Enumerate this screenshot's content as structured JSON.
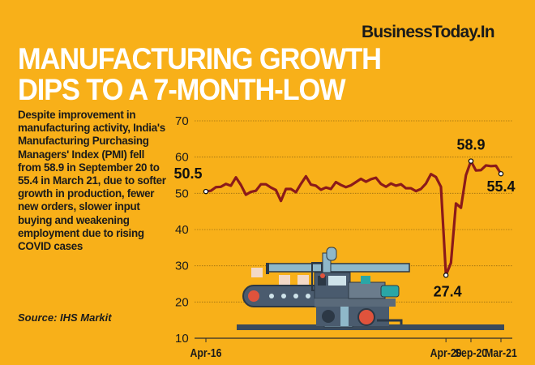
{
  "brand": "BusinessToday.In",
  "title_lines": [
    "MANUFACTURING GROWTH",
    "DIPS TO A 7-MONTH-LOW"
  ],
  "description": "Despite improvement in manufacturing activity, India's Manufacturing Purchasing Managers' Index (PMI) fell from 58.9 in September 20 to 55.4 in March 21, due to softer growth in production, fewer new orders, slower input buying and weakening employment due to rising COVID cases",
  "source": "Source: IHS Markit",
  "colors": {
    "background": "#F8B019",
    "line": "#8B1A1A",
    "title": "#FFFFFF"
  },
  "chart_data": {
    "type": "line",
    "title": "",
    "xlabel": "",
    "ylabel": "",
    "ylim": [
      10,
      70
    ],
    "yticks": [
      10,
      20,
      30,
      40,
      50,
      60,
      70
    ],
    "grid": "horizontal dotted",
    "x_start": "Apr-16",
    "x_end": "Mar-21",
    "xticks": [
      {
        "index": 0,
        "label": "Apr-16"
      },
      {
        "index": 48,
        "label": "Apr-20"
      },
      {
        "index": 53,
        "label": "Sep-20"
      },
      {
        "index": 59,
        "label": "Mar-21"
      }
    ],
    "values": [
      50.5,
      50.7,
      51.7,
      51.8,
      52.6,
      52.1,
      54.4,
      52.3,
      49.6,
      50.4,
      50.7,
      52.5,
      52.5,
      51.6,
      50.9,
      47.9,
      51.2,
      51.2,
      50.3,
      52.6,
      54.7,
      52.4,
      52.1,
      51.0,
      51.6,
      51.2,
      53.1,
      52.3,
      51.7,
      52.2,
      53.1,
      54.0,
      53.2,
      53.9,
      54.3,
      52.6,
      51.8,
      52.7,
      52.1,
      52.5,
      51.4,
      51.4,
      50.6,
      51.2,
      52.7,
      55.3,
      54.5,
      51.8,
      27.4,
      30.8,
      47.2,
      46.0,
      55.0,
      58.9,
      56.3,
      56.4,
      57.7,
      57.5,
      57.6,
      55.4
    ],
    "annotations": [
      {
        "index": 0,
        "label": "50.5"
      },
      {
        "index": 48,
        "label": "27.4"
      },
      {
        "index": 53,
        "label": "58.9"
      },
      {
        "index": 59,
        "label": "55.4"
      }
    ]
  }
}
